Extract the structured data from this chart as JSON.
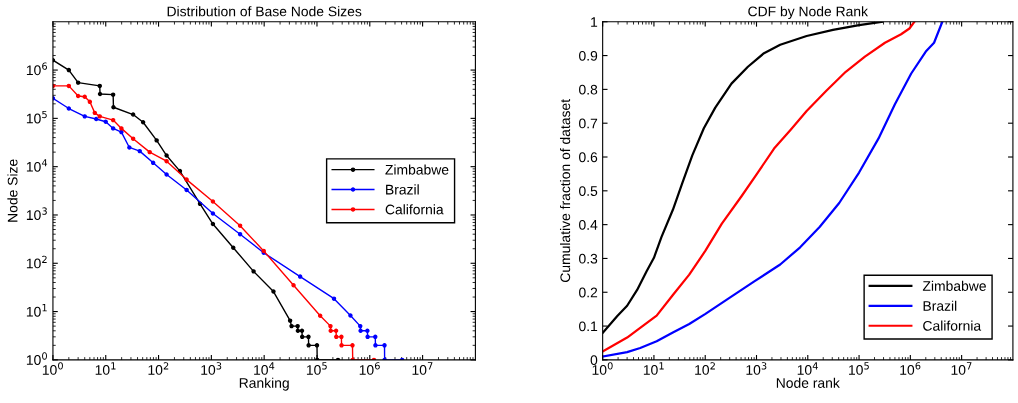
{
  "chart_data": [
    {
      "type": "line",
      "title": "Distribution of Base Node Sizes",
      "xlabel": "Ranking",
      "ylabel": "Node Size",
      "log": "xy",
      "marker": "circle",
      "legend": "center right",
      "xlim": [
        1,
        100000000
      ],
      "ylim": [
        1,
        10000000
      ],
      "xticks": [
        {
          "value": 1,
          "label": "10$^{0}$"
        },
        {
          "value": 10,
          "label": "10$^{1}$"
        },
        {
          "value": 100,
          "label": "10$^{2}$"
        },
        {
          "value": 1000,
          "label": "10$^{3}$"
        },
        {
          "value": 10000,
          "label": "10$^{4}$"
        },
        {
          "value": 100000,
          "label": "10$^{5}$"
        },
        {
          "value": 1000000,
          "label": "10$^{6}$"
        },
        {
          "value": 10000000,
          "label": "10$^{7}$"
        }
      ],
      "yticks": [
        {
          "value": 1,
          "label": "10$^{0}$"
        },
        {
          "value": 10,
          "label": "10$^{1}$"
        },
        {
          "value": 100,
          "label": "10$^{2}$"
        },
        {
          "value": 1000,
          "label": "10$^{3}$"
        },
        {
          "value": 10000,
          "label": "10$^{4}$"
        },
        {
          "value": 100000,
          "label": "10$^{5}$"
        },
        {
          "value": 1000000,
          "label": "10$^{6}$"
        }
      ],
      "series": [
        {
          "name": "Zimbabwe",
          "color": "#000000",
          "x": [
            1,
            2,
            3,
            7.7,
            7.8,
            13.8,
            14,
            33,
            51,
            92,
            142,
            254,
            610,
            1070,
            2600,
            6300,
            15000,
            31000,
            33000,
            43000,
            43500,
            52000,
            52500,
            69000,
            69500,
            100000,
            101000,
            250000
          ],
          "values": [
            1600000,
            1000000,
            550000,
            470000,
            320000,
            310000,
            170000,
            120000,
            83000,
            35000,
            17000,
            8100,
            1700,
            650,
            210,
            68,
            26,
            6.5,
            5,
            5,
            4,
            4,
            3,
            3,
            2,
            2,
            1,
            1
          ]
        },
        {
          "name": "Brazil",
          "color": "#0000ff",
          "x": [
            1,
            2,
            4,
            6.6,
            10,
            13.8,
            19.8,
            28,
            44,
            79,
            142,
            340,
            1070,
            3500,
            9800,
            48000,
            210000,
            430000,
            660000,
            670000,
            900000,
            910000,
            1270000,
            1280000,
            1900000,
            1910000,
            4100000
          ],
          "values": [
            260000,
            160000,
            110000,
            97000,
            85000,
            62000,
            52000,
            25000,
            21000,
            12000,
            6900,
            3300,
            1070,
            400,
            165,
            53,
            18.5,
            8.3,
            5,
            4,
            4,
            3,
            3,
            2,
            2,
            1,
            1
          ]
        },
        {
          "name": "California",
          "color": "#ff0000",
          "x": [
            1,
            2,
            3,
            4,
            5,
            6.2,
            7.7,
            13.8,
            19.8,
            33,
            68,
            142,
            340,
            1070,
            3500,
            9800,
            36000,
            115000,
            180000,
            182000,
            230000,
            232000,
            290000,
            292000,
            470000,
            475000,
            1200000
          ],
          "values": [
            470000,
            470000,
            290000,
            280000,
            220000,
            130000,
            110000,
            92000,
            62000,
            38000,
            20000,
            13000,
            5400,
            1900,
            600,
            180,
            35,
            8.2,
            5,
            4,
            4,
            3,
            3,
            2,
            2,
            1,
            1
          ]
        }
      ]
    },
    {
      "type": "line",
      "title": "CDF by Node Rank",
      "xlabel": "Node rank",
      "ylabel": "Cumulative fraction of dataset",
      "log": "x",
      "legend": "lower right",
      "xlim": [
        1,
        100000000
      ],
      "ylim": [
        0,
        1
      ],
      "xticks": [
        {
          "value": 1,
          "label": "10$^{0}$"
        },
        {
          "value": 10,
          "label": "10$^{1}$"
        },
        {
          "value": 100,
          "label": "10$^{2}$"
        },
        {
          "value": 1000,
          "label": "10$^{3}$"
        },
        {
          "value": 10000,
          "label": "10$^{4}$"
        },
        {
          "value": 100000,
          "label": "10$^{5}$"
        },
        {
          "value": 1000000,
          "label": "10$^{6}$"
        },
        {
          "value": 10000000,
          "label": "10$^{7}$"
        }
      ],
      "yticks": [
        0,
        0.1,
        0.2,
        0.3,
        0.4,
        0.5,
        0.6,
        0.7,
        0.8,
        0.9,
        1
      ],
      "series": [
        {
          "name": "Zimbabwe",
          "color": "#000000",
          "x": [
            1,
            1.93,
            3,
            4.7,
            7.2,
            10,
            14,
            23.4,
            36,
            56,
            94,
            157,
            325,
            680,
            1400,
            2900,
            9500,
            31000,
            100000,
            280000
          ],
          "values": [
            0.08,
            0.13,
            0.16,
            0.207,
            0.262,
            0.302,
            0.363,
            0.444,
            0.524,
            0.605,
            0.685,
            0.746,
            0.817,
            0.867,
            0.907,
            0.932,
            0.958,
            0.976,
            0.99,
            1.0
          ]
        },
        {
          "name": "Brazil",
          "color": "#0000ff",
          "x": [
            1,
            3,
            5.4,
            11.3,
            23.4,
            48.8,
            101,
            282,
            906,
            2900,
            7100,
            17000,
            41000,
            100000,
            240000,
            500000,
            1040000,
            2000000,
            2900000,
            4200000
          ],
          "values": [
            0.01,
            0.023,
            0.035,
            0.055,
            0.081,
            0.106,
            0.136,
            0.181,
            0.232,
            0.282,
            0.333,
            0.393,
            0.464,
            0.554,
            0.655,
            0.756,
            0.847,
            0.912,
            0.938,
            1.0
          ]
        },
        {
          "name": "California",
          "color": "#ff0000",
          "x": [
            1,
            3,
            5,
            11.3,
            23.4,
            48.8,
            101,
            211,
            510,
            1060,
            2200,
            4600,
            9500,
            23000,
            55000,
            130000,
            320000,
            660000,
            960000,
            1200000
          ],
          "values": [
            0.025,
            0.066,
            0.091,
            0.131,
            0.192,
            0.252,
            0.323,
            0.403,
            0.484,
            0.554,
            0.625,
            0.68,
            0.736,
            0.796,
            0.852,
            0.897,
            0.938,
            0.963,
            0.98,
            1.0
          ]
        }
      ]
    }
  ]
}
